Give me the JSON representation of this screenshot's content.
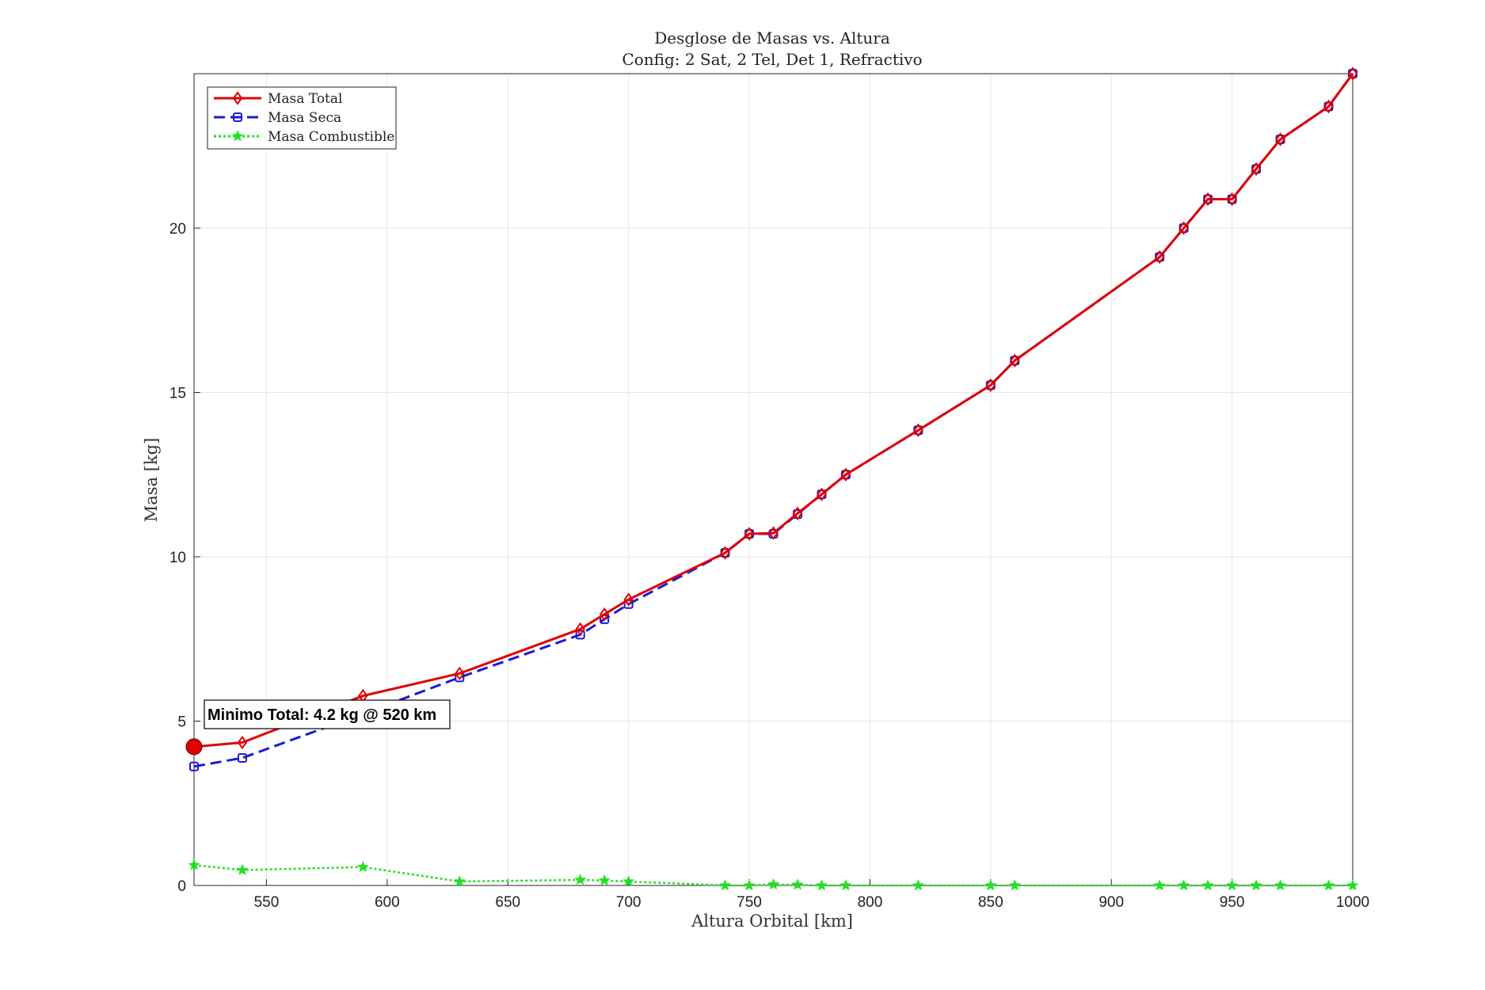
{
  "chart_data": {
    "type": "line",
    "title": "Desglose de Masas vs. Altura",
    "subtitle": "Config: 2 Sat, 2 Tel, Det 1, Refractivo",
    "xlabel": "Altura Orbital [km]",
    "ylabel": "Masa [kg]",
    "xlim": [
      520,
      1000
    ],
    "ylim": [
      0,
      24.7
    ],
    "xticks": [
      550,
      600,
      650,
      700,
      750,
      800,
      850,
      900,
      950,
      1000
    ],
    "yticks": [
      0,
      5,
      10,
      15,
      20
    ],
    "grid": true,
    "legend_position": "top-left",
    "x": [
      520,
      540,
      590,
      630,
      680,
      690,
      700,
      740,
      750,
      760,
      770,
      780,
      790,
      820,
      850,
      860,
      920,
      930,
      940,
      950,
      960,
      970,
      990,
      1000
    ],
    "series": [
      {
        "name": "Masa Total",
        "color": "#e00000",
        "marker": "diamond",
        "line_style": "solid",
        "values": [
          4.22,
          4.35,
          5.77,
          6.45,
          7.8,
          8.25,
          8.7,
          10.12,
          10.7,
          10.72,
          11.32,
          11.9,
          12.5,
          13.85,
          15.22,
          15.97,
          19.12,
          20.0,
          20.88,
          20.88,
          21.8,
          22.7,
          23.7,
          24.7
        ]
      },
      {
        "name": "Masa Seca",
        "color": "#1a1ad6",
        "marker": "square",
        "line_style": "dashed",
        "values": [
          3.62,
          3.88,
          5.22,
          6.33,
          7.63,
          8.1,
          8.56,
          10.12,
          10.7,
          10.7,
          11.3,
          11.9,
          12.5,
          13.85,
          15.22,
          15.97,
          19.12,
          20.0,
          20.88,
          20.88,
          21.8,
          22.7,
          23.7,
          24.7
        ]
      },
      {
        "name": "Masa Combustible",
        "color": "#22e022",
        "marker": "star",
        "line_style": "dotted",
        "values": [
          0.62,
          0.47,
          0.56,
          0.12,
          0.17,
          0.15,
          0.12,
          0.0,
          0.0,
          0.03,
          0.02,
          0.0,
          0.0,
          0.0,
          0.0,
          0.0,
          0.0,
          0.0,
          0.0,
          0.0,
          0.0,
          0.0,
          0.0,
          0.0
        ]
      }
    ],
    "annotation": {
      "text": "Minimo Total: 4.2 kg @ 520 km",
      "x": 520,
      "y": 4.22,
      "marker_color": "#e00000"
    }
  }
}
